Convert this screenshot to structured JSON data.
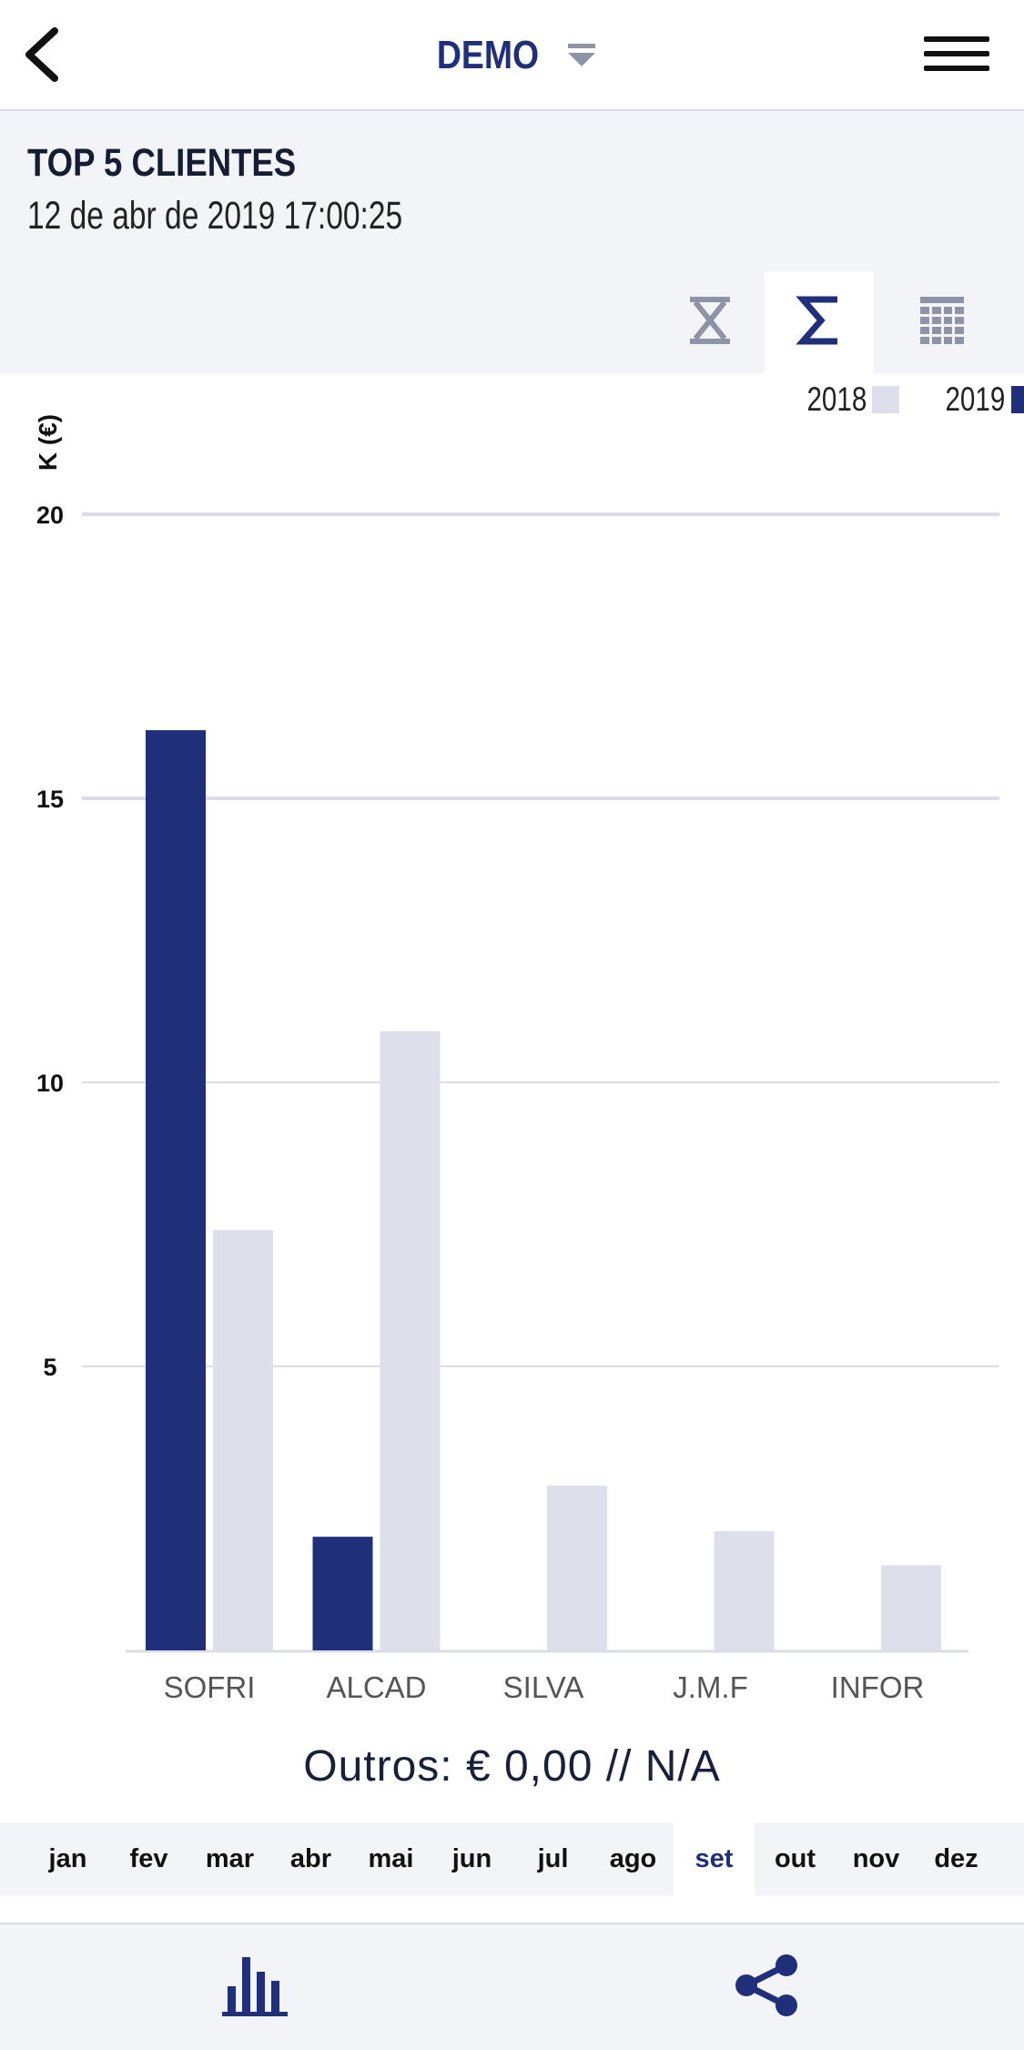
{
  "header": {
    "app_title": "DEMO"
  },
  "page": {
    "title": "TOP 5 CLIENTES",
    "timestamp": "12 de abr de 2019 17:00:25"
  },
  "view_modes": {
    "active": "sum",
    "items": [
      "period-icon",
      "sum-icon",
      "table-grid-icon"
    ]
  },
  "colors": {
    "brand": "#1f2f7a",
    "series_2018": "#dde0ea",
    "series_2019": "#1f2f7a",
    "gridline": "#dadde5",
    "muted_icon": "#8e94a6"
  },
  "chart_data": {
    "type": "bar",
    "ylabel": "K (€)",
    "ylim": [
      0,
      20
    ],
    "yticks": [
      "5",
      "10",
      "15",
      "20"
    ],
    "grid": true,
    "legend_position": "top-right",
    "categories": [
      "SOFRI",
      "ALCAD",
      "SILVA",
      "J.M.F",
      "INFOR"
    ],
    "series": [
      {
        "name": "2019",
        "values": [
          16.2,
          2.0,
          0,
          0,
          0
        ]
      },
      {
        "name": "2018",
        "values": [
          7.4,
          10.9,
          2.9,
          2.1,
          1.5
        ]
      }
    ]
  },
  "summary": {
    "outros": "Outros: € 0,00 // N/A"
  },
  "months": {
    "items": [
      "jan",
      "fev",
      "mar",
      "abr",
      "mai",
      "jun",
      "jul",
      "ago",
      "set",
      "out",
      "nov",
      "dez"
    ],
    "selected": "set"
  },
  "bottom_tabs": [
    "bar-chart-icon",
    "share-icon"
  ]
}
